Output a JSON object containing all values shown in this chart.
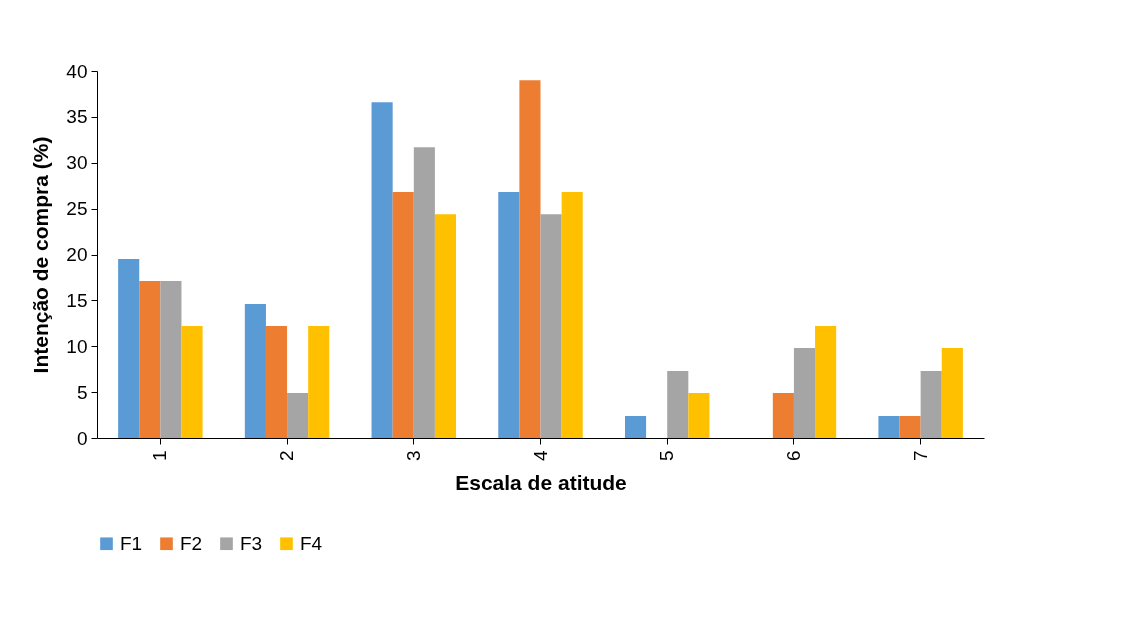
{
  "chart_data": {
    "type": "bar",
    "xlabel": "Escala de atitude",
    "ylabel": "Intenção de compra (%)",
    "categories": [
      "1",
      "2",
      "3",
      "4",
      "5",
      "6",
      "7"
    ],
    "series": [
      {
        "name": "F1",
        "color": "#5b9bd5",
        "values": [
          19.5,
          14.6,
          36.6,
          26.8,
          2.4,
          0,
          2.4
        ]
      },
      {
        "name": "F2",
        "color": "#ed7d31",
        "values": [
          17.1,
          12.2,
          26.8,
          39.0,
          0,
          4.9,
          2.4
        ]
      },
      {
        "name": "F3",
        "color": "#a5a5a5",
        "values": [
          17.1,
          4.9,
          31.7,
          24.4,
          7.3,
          9.8,
          7.3
        ]
      },
      {
        "name": "F4",
        "color": "#ffc000",
        "values": [
          12.2,
          12.2,
          24.4,
          26.8,
          4.9,
          12.2,
          9.8
        ]
      }
    ],
    "ylim": [
      0,
      40
    ],
    "yticks": [
      0,
      5,
      10,
      15,
      20,
      25,
      30,
      35,
      40
    ],
    "grid": false,
    "legend": "bottom"
  }
}
